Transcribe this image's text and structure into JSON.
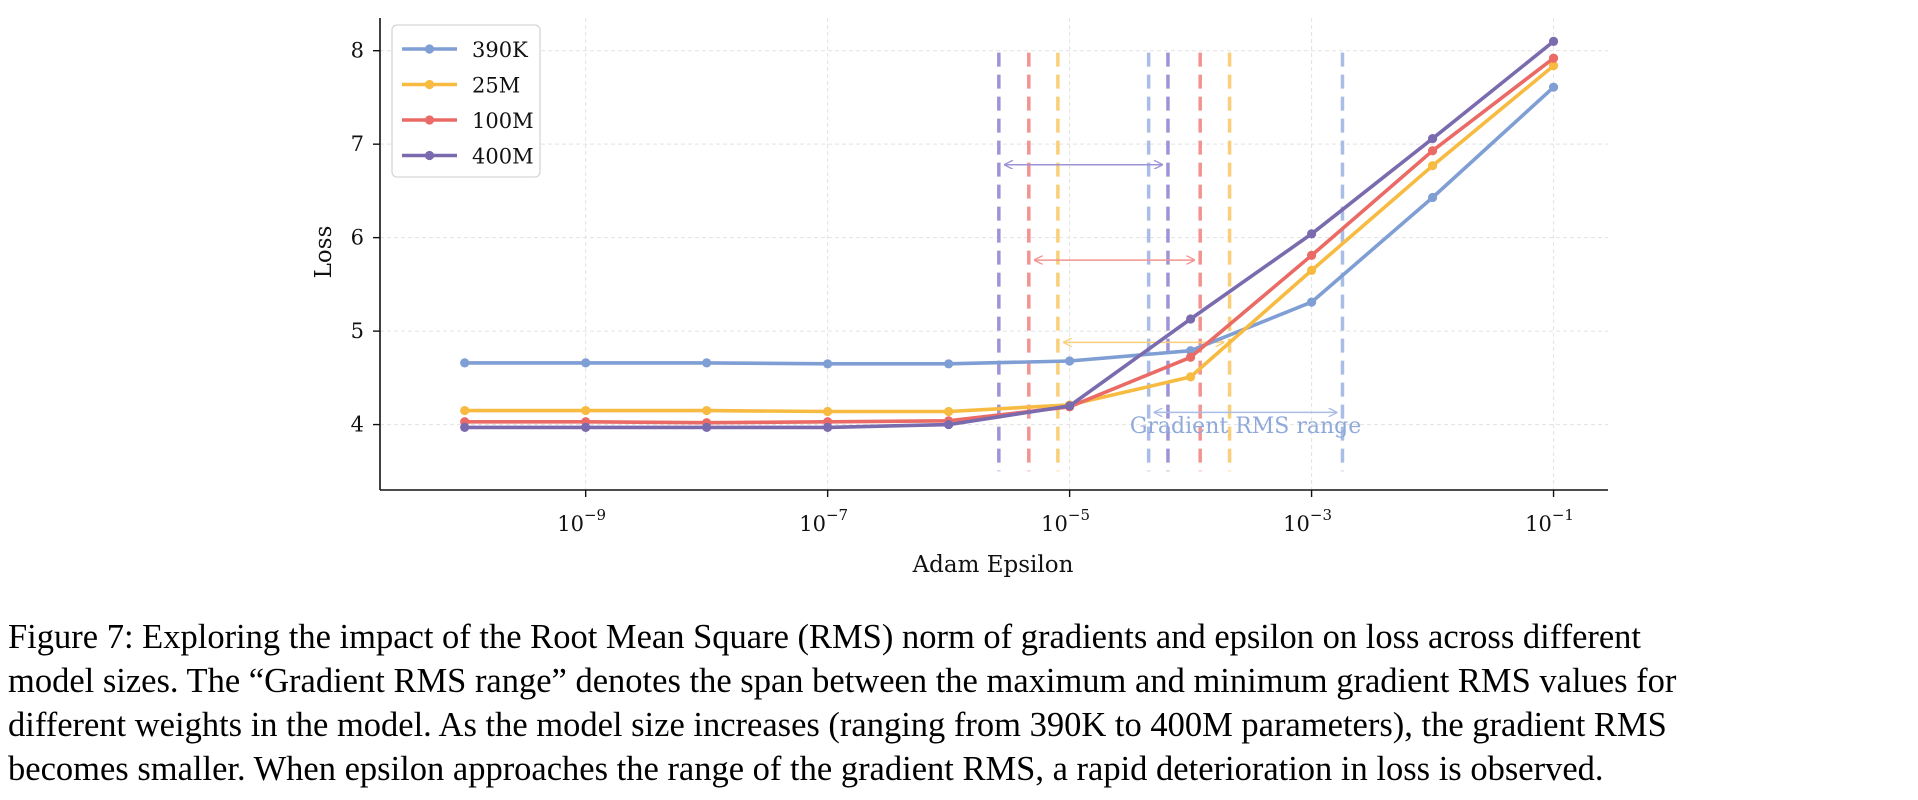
{
  "chart_data": {
    "type": "line",
    "xscale": "log",
    "title": "",
    "xlabel": "Adam Epsilon",
    "ylabel": "Loss",
    "xlim_log10": [
      -10.7,
      -0.55
    ],
    "ylim": [
      3.3,
      8.35
    ],
    "x_ticks": [
      {
        "exp": -9,
        "base": "10",
        "sup": "−9"
      },
      {
        "exp": -7,
        "base": "10",
        "sup": "−7"
      },
      {
        "exp": -5,
        "base": "10",
        "sup": "−5"
      },
      {
        "exp": -3,
        "base": "10",
        "sup": "−3"
      },
      {
        "exp": -1,
        "base": "10",
        "sup": "−1"
      }
    ],
    "y_ticks": [
      4,
      5,
      6,
      7,
      8
    ],
    "grid": true,
    "legend_position": "top-left",
    "x": [
      1e-10,
      1e-09,
      1e-08,
      1e-07,
      1e-06,
      1e-05,
      0.0001,
      0.001,
      0.01,
      0.1
    ],
    "series": [
      {
        "name": "390K",
        "color": "#7f9ed4",
        "values": [
          4.66,
          4.66,
          4.66,
          4.65,
          4.65,
          4.68,
          4.79,
          5.31,
          6.43,
          7.61
        ]
      },
      {
        "name": "25M",
        "color": "#f7bb41",
        "values": [
          4.15,
          4.15,
          4.15,
          4.14,
          4.14,
          4.21,
          4.51,
          5.65,
          6.77,
          7.84
        ]
      },
      {
        "name": "100M",
        "color": "#ea6b66",
        "values": [
          4.03,
          4.03,
          4.02,
          4.03,
          4.04,
          4.19,
          4.72,
          5.81,
          6.93,
          7.92
        ]
      },
      {
        "name": "400M",
        "color": "#7a6aae",
        "values": [
          3.97,
          3.97,
          3.97,
          3.97,
          4.0,
          4.2,
          5.13,
          6.04,
          7.06,
          8.1
        ]
      }
    ],
    "gradient_rms_ranges": [
      {
        "model": "400M",
        "color": "#9d93d6",
        "x_min": 2.6e-06,
        "x_max": 6.5e-05,
        "arrow_y": 6.78
      },
      {
        "model": "100M",
        "color": "#f3938f",
        "x_min": 4.6e-06,
        "x_max": 0.00012,
        "arrow_y": 5.76
      },
      {
        "model": "25M",
        "color": "#f9cf7a",
        "x_min": 8e-06,
        "x_max": 0.00021,
        "arrow_y": 4.88
      },
      {
        "model": "390K",
        "color": "#a9bde6",
        "x_min": 4.5e-05,
        "x_max": 0.0018,
        "arrow_y": 4.13
      }
    ],
    "annotation": {
      "text": "Gradient RMS range",
      "color": "#8fa9da"
    }
  },
  "caption": {
    "lines": [
      "Figure 7: Exploring the impact of the Root Mean Square (RMS) norm of gradients and epsilon on loss across different",
      "model sizes. The “Gradient RMS range” denotes the span between the maximum and minimum gradient RMS values for",
      "different weights in the model. As the model size increases (ranging from 390K to 400M parameters), the gradient RMS",
      "becomes smaller. When epsilon approaches the range of the gradient RMS, a rapid deterioration in loss is observed."
    ]
  }
}
